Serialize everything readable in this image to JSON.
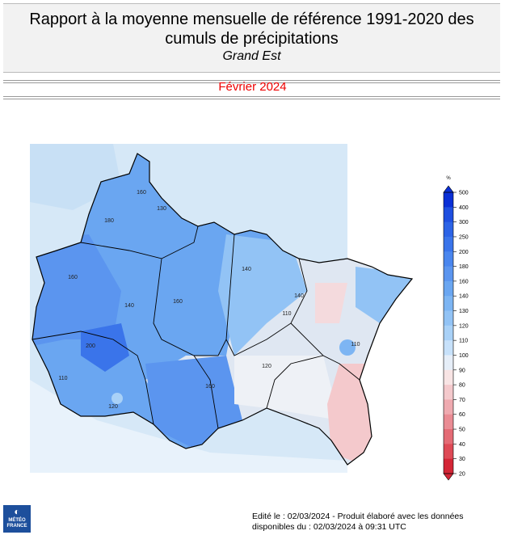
{
  "header": {
    "title": "Rapport à la moyenne mensuelle de référence 1991-2020 des cumuls de précipitations",
    "region": "Grand Est"
  },
  "period": "Février 2024",
  "legend": {
    "unit": "%",
    "ticks": [
      500,
      400,
      300,
      250,
      200,
      180,
      160,
      140,
      130,
      120,
      110,
      100,
      90,
      80,
      70,
      60,
      50,
      40,
      30,
      20
    ],
    "colors": [
      "#0a2fd6",
      "#1e4fe0",
      "#2c63e6",
      "#3a74ea",
      "#4a86ee",
      "#5b95ef",
      "#6aa6f1",
      "#7db5f3",
      "#92c3f5",
      "#a9d1f7",
      "#c7e1fa",
      "#e6eef8",
      "#f8e4e4",
      "#f4c9cc",
      "#efaab0",
      "#ea8c94",
      "#e46b75",
      "#de4a56",
      "#d42636"
    ]
  },
  "map": {
    "contour_labels": [
      "180",
      "160",
      "160",
      "140",
      "200",
      "110",
      "130",
      "140",
      "160",
      "120",
      "110",
      "110",
      "140",
      "160",
      "120"
    ]
  },
  "footer": {
    "edited": "Edité le : 02/03/2024 - Produit élaboré avec les données",
    "available": "disponibles du : 02/03/2024 à 09:31 UTC"
  },
  "logo": {
    "line1": "MÉTÉO",
    "line2": "FRANCE"
  }
}
